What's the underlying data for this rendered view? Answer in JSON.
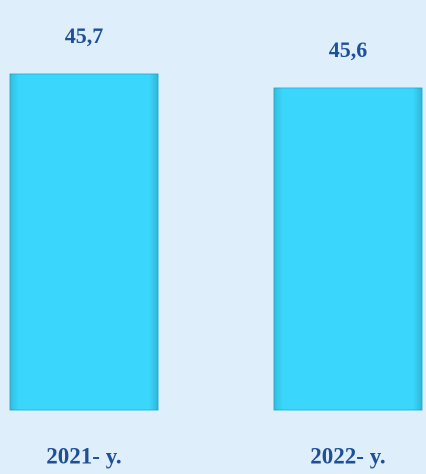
{
  "chart_data": {
    "type": "bar",
    "categories": [
      "2021- y.",
      "2022- y."
    ],
    "values": [
      45.7,
      45.6
    ],
    "value_labels": [
      "45,7",
      "45,6"
    ],
    "color": "#3ad6fc",
    "ylim": [
      43.3,
      46.0
    ]
  }
}
